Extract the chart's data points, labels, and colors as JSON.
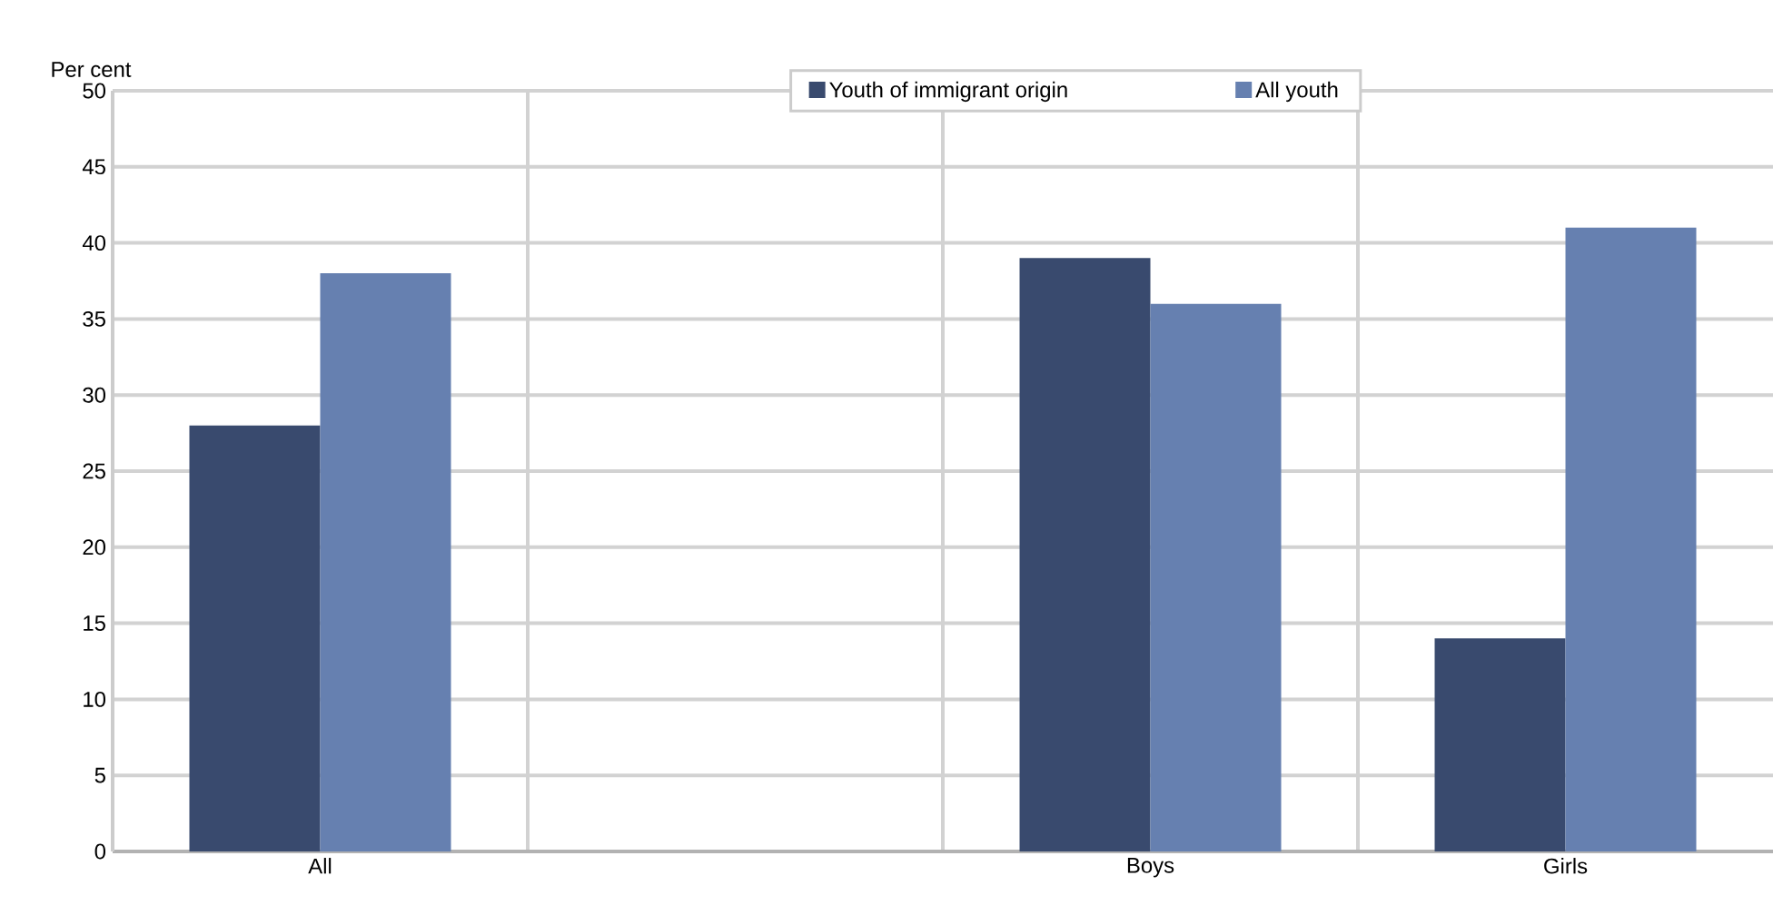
{
  "chart_data": {
    "type": "bar",
    "ylabel": "Per cent",
    "categories": [
      "All",
      null,
      "Boys",
      "Girls"
    ],
    "series": [
      {
        "name": "Youth of immigrant origin",
        "color": "#394a6e",
        "values": [
          28,
          null,
          39,
          14
        ]
      },
      {
        "name": "All youth",
        "color": "#6680b0",
        "values": [
          38,
          null,
          36,
          41
        ]
      }
    ],
    "ylim": [
      0,
      50
    ],
    "yticks": [
      0,
      5,
      10,
      15,
      20,
      25,
      30,
      35,
      40,
      45,
      50
    ],
    "grid": true,
    "legend": "top"
  }
}
